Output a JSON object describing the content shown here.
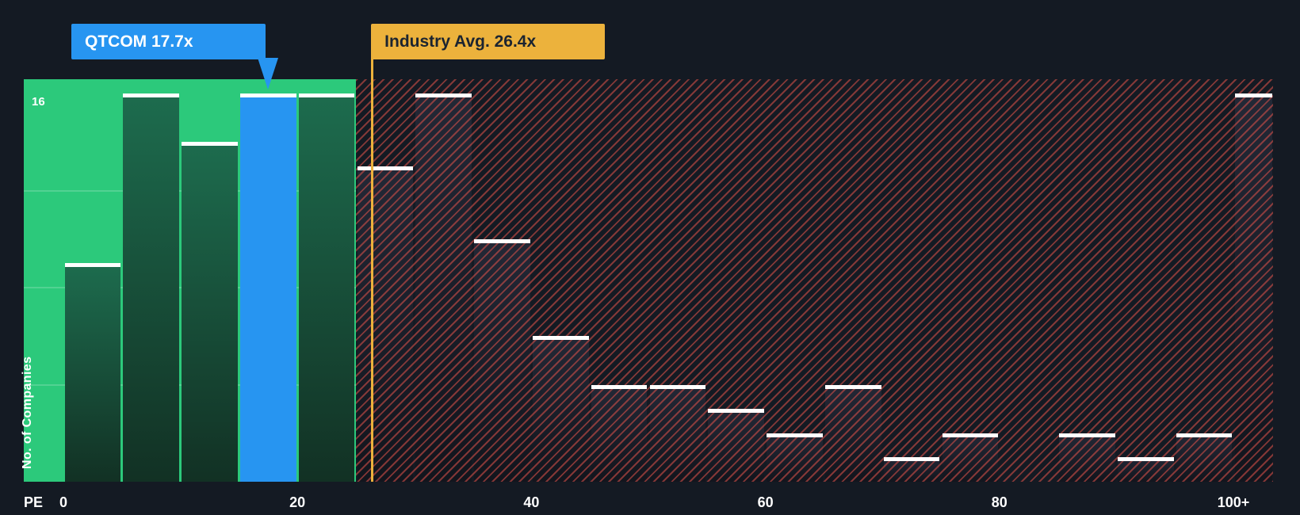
{
  "colors": {
    "background": "#141A23",
    "accent_green": "#2CC97B",
    "accent_blue": "#2795F1",
    "accent_gold": "#ECB23C",
    "hatch_red": "#E0524A",
    "bar_green_top": "#1D6C4E",
    "bar_green_bottom": "#123124",
    "bar_dark_top": "#232836",
    "bar_dark_bottom": "#12151D",
    "cap_white": "#FFFFFF",
    "gold_text": "#1B2430"
  },
  "chart_data": {
    "type": "bar",
    "subtype": "histogram",
    "title": "",
    "xlabel": "PE",
    "ylabel": "No. of Companies",
    "ylim": [
      0,
      16
    ],
    "y_top_tick": "16",
    "grid": "horizontal-lines-in-undervalued-zone-only",
    "legend": "none",
    "bin_size_pe": 5,
    "categories": [
      "0-5",
      "5-10",
      "10-15",
      "15-20",
      "20-25",
      "25-30",
      "30-35",
      "35-40",
      "40-45",
      "45-50",
      "50-55",
      "55-60",
      "60-65",
      "65-70",
      "70-75",
      "75-80",
      "80-85",
      "85-90",
      "90-95",
      "95-100",
      "100+"
    ],
    "values": [
      9,
      16,
      14,
      16,
      16,
      13,
      16,
      10,
      6,
      4,
      4,
      3,
      2,
      4,
      1,
      2,
      0,
      2,
      1,
      2,
      16
    ],
    "x_ticks": [
      {
        "pe": 0,
        "label": "0"
      },
      {
        "pe": 20,
        "label": "20"
      },
      {
        "pe": 40,
        "label": "40"
      },
      {
        "pe": 60,
        "label": "60"
      },
      {
        "pe": 80,
        "label": "80"
      },
      {
        "pe": 100,
        "label": "100+"
      }
    ],
    "company": {
      "label": "QTCOM 17.7x",
      "name": "QTCOM",
      "pe": 17.7,
      "bin_index": 3
    },
    "industry": {
      "label": "Industry Avg. 26.4x",
      "pe": 26.4
    },
    "zones": {
      "undervalued_end_pe": 25,
      "undervalued_style": "solid-green-background",
      "overvalued_style": "red-diagonal-hatch"
    }
  }
}
